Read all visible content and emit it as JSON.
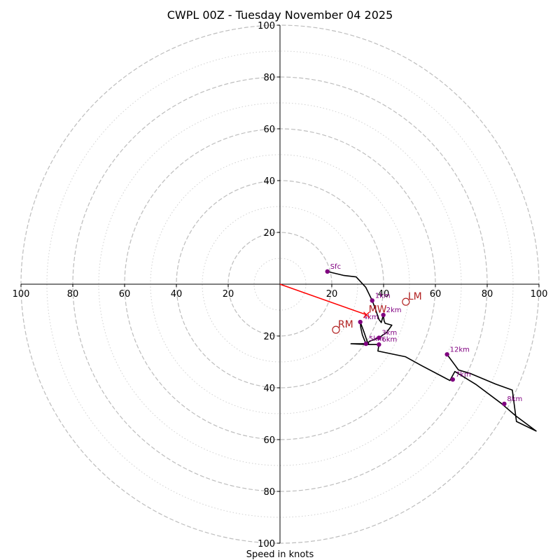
{
  "chart_data": {
    "type": "line",
    "title": "CWPL 00Z - Tuesday November 04 2025",
    "xlabel": "Speed in knots",
    "ylabel": "",
    "xlim": [
      -100,
      100
    ],
    "ylim": [
      -100,
      100
    ],
    "rings_dashed": [
      20,
      40,
      60,
      80,
      100
    ],
    "rings_dotted": [
      10,
      30,
      50,
      70,
      90
    ],
    "x_ticks": [
      {
        "value": -100,
        "label": "100"
      },
      {
        "value": -80,
        "label": "80"
      },
      {
        "value": -60,
        "label": "60"
      },
      {
        "value": -40,
        "label": "40"
      },
      {
        "value": -20,
        "label": "20"
      },
      {
        "value": 20,
        "label": "20"
      },
      {
        "value": 40,
        "label": "40"
      },
      {
        "value": 60,
        "label": "60"
      },
      {
        "value": 80,
        "label": "80"
      },
      {
        "value": 100,
        "label": "100"
      }
    ],
    "y_ticks": [
      {
        "value": 100,
        "label": "100"
      },
      {
        "value": 80,
        "label": "80"
      },
      {
        "value": 60,
        "label": "60"
      },
      {
        "value": 40,
        "label": "40"
      },
      {
        "value": 20,
        "label": "20"
      },
      {
        "value": -20,
        "label": "20"
      },
      {
        "value": -40,
        "label": "40"
      },
      {
        "value": -60,
        "label": "60"
      },
      {
        "value": -80,
        "label": "80"
      },
      {
        "value": -100,
        "label": "100"
      }
    ],
    "series": [
      {
        "name": "hodograph",
        "color": "#000000",
        "points": [
          [
            18.3,
            4.9
          ],
          [
            24.5,
            3.4
          ],
          [
            29.4,
            2.8
          ],
          [
            33.1,
            -1.2
          ],
          [
            35.6,
            -6.3
          ],
          [
            36.8,
            -9.5
          ],
          [
            38.2,
            -13.6
          ],
          [
            39.1,
            -14.8
          ],
          [
            39.9,
            -11.9
          ],
          [
            40.2,
            -14.1
          ],
          [
            40.6,
            -15.1
          ],
          [
            43.2,
            -15.8
          ],
          [
            41.2,
            -18.6
          ],
          [
            38.2,
            -20.7
          ],
          [
            35.1,
            -21.8
          ],
          [
            33.2,
            -23.0
          ],
          [
            31.8,
            -19.6
          ],
          [
            31.2,
            -16.8
          ],
          [
            31.0,
            -14.6
          ],
          [
            32.5,
            -18.7
          ],
          [
            33.7,
            -22.2
          ],
          [
            34.2,
            -22.9
          ],
          [
            31.2,
            -23.0
          ],
          [
            27.4,
            -23.0
          ],
          [
            34.2,
            -23.3
          ],
          [
            38.2,
            -23.3
          ],
          [
            37.8,
            -25.8
          ],
          [
            48.4,
            -28.0
          ],
          [
            54.6,
            -31.4
          ],
          [
            65.6,
            -37.2
          ],
          [
            67.5,
            -33.7
          ],
          [
            75.8,
            -38.8
          ],
          [
            85.4,
            -46.0
          ],
          [
            91.0,
            -50.8
          ],
          [
            98.9,
            -56.7
          ],
          [
            91.3,
            -53.0
          ],
          [
            89.7,
            -40.9
          ],
          [
            83.3,
            -38.6
          ],
          [
            73.3,
            -34.4
          ],
          [
            68.9,
            -33.1
          ],
          [
            67.6,
            -31.3
          ],
          [
            64.5,
            -27.1
          ]
        ]
      },
      {
        "name": "mean-wind-vector",
        "color": "#ff0000",
        "points": [
          [
            0,
            0
          ],
          [
            33.4,
            -11.8
          ]
        ]
      }
    ],
    "height_markers": [
      {
        "label": "Sfc",
        "u": 18.3,
        "v": 4.9
      },
      {
        "label": "1km",
        "u": 35.6,
        "v": -6.3
      },
      {
        "label": "2km",
        "u": 39.9,
        "v": -11.9
      },
      {
        "label": "3km",
        "u": 38.2,
        "v": -20.7
      },
      {
        "label": "4km",
        "u": 31.0,
        "v": -14.6
      },
      {
        "label": "5km",
        "u": 33.2,
        "v": -23.0
      },
      {
        "label": "6km",
        "u": 38.2,
        "v": -23.3
      },
      {
        "label": "7km",
        "u": 66.7,
        "v": -36.8
      },
      {
        "label": "8km",
        "u": 86.6,
        "v": -46.2
      },
      {
        "label": "12km",
        "u": 64.5,
        "v": -27.1
      }
    ],
    "motion_markers": [
      {
        "label": "LM",
        "u": 48.6,
        "v": -6.8,
        "symbol": "circle"
      },
      {
        "label": "RM",
        "u": 21.6,
        "v": -17.6,
        "symbol": "circle"
      },
      {
        "label": "MW",
        "u": 33.4,
        "v": -11.8,
        "symbol": "x"
      }
    ],
    "colors": {
      "ring": "#bdbdbd",
      "axis": "#000000",
      "marker": "#800080",
      "motion": "#b22222",
      "mean_wind": "#ff0000"
    }
  }
}
